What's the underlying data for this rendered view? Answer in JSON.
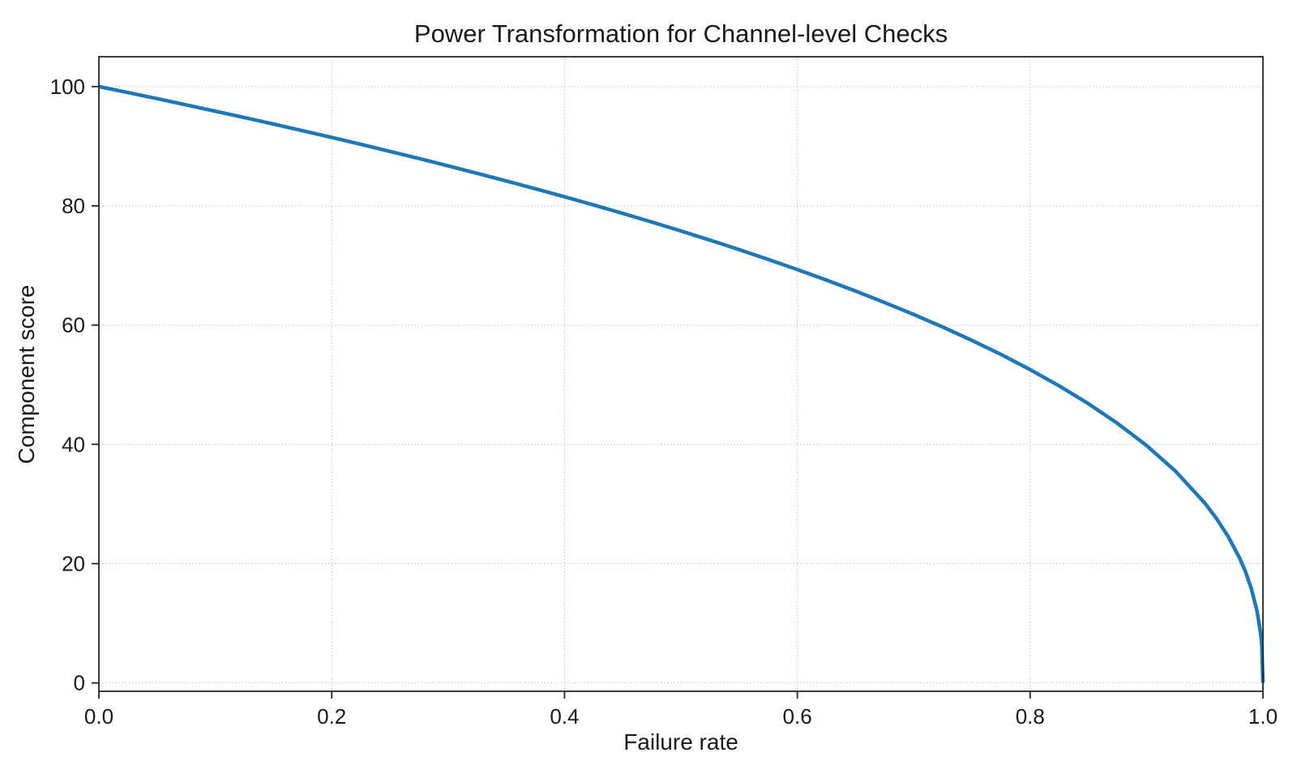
{
  "figure": {
    "background": "#ffffff"
  },
  "chart_data": {
    "type": "line",
    "title": "Power Transformation for Channel-level Checks",
    "xlabel": "Failure rate",
    "ylabel": "Component score",
    "xlim": [
      0.0,
      1.0
    ],
    "ylim": [
      -1.4,
      105.0
    ],
    "xticks": [
      0.0,
      0.2,
      0.4,
      0.6,
      0.8,
      1.0
    ],
    "xtick_labels": [
      "0.0",
      "0.2",
      "0.4",
      "0.6",
      "0.8",
      "1.0"
    ],
    "yticks": [
      0,
      20,
      40,
      60,
      80,
      100
    ],
    "ytick_labels": [
      "0",
      "20",
      "40",
      "60",
      "80",
      "100"
    ],
    "grid": true,
    "grid_style": "dotted",
    "legend": "none",
    "colors": {
      "line": "#1f77b4",
      "grid": "#c9c9c9",
      "spine": "#262626",
      "text": "#1a1a1a"
    },
    "series": [
      {
        "name": "component-score-curve",
        "points": [
          [
            0.0,
            100.0
          ],
          [
            0.025,
            98.99
          ],
          [
            0.05,
            97.97
          ],
          [
            0.075,
            96.93
          ],
          [
            0.1,
            95.87
          ],
          [
            0.125,
            94.8
          ],
          [
            0.15,
            93.71
          ],
          [
            0.175,
            92.59
          ],
          [
            0.2,
            91.46
          ],
          [
            0.225,
            90.31
          ],
          [
            0.25,
            89.13
          ],
          [
            0.275,
            87.93
          ],
          [
            0.3,
            86.7
          ],
          [
            0.325,
            85.45
          ],
          [
            0.35,
            84.17
          ],
          [
            0.375,
            82.86
          ],
          [
            0.4,
            81.52
          ],
          [
            0.425,
            80.14
          ],
          [
            0.45,
            78.73
          ],
          [
            0.475,
            77.28
          ],
          [
            0.5,
            75.79
          ],
          [
            0.525,
            74.25
          ],
          [
            0.55,
            72.66
          ],
          [
            0.575,
            71.02
          ],
          [
            0.6,
            69.31
          ],
          [
            0.625,
            67.55
          ],
          [
            0.65,
            65.71
          ],
          [
            0.675,
            63.79
          ],
          [
            0.7,
            61.78
          ],
          [
            0.725,
            59.67
          ],
          [
            0.75,
            57.43
          ],
          [
            0.775,
            55.07
          ],
          [
            0.8,
            52.53
          ],
          [
            0.825,
            49.8
          ],
          [
            0.85,
            46.82
          ],
          [
            0.875,
            43.53
          ],
          [
            0.9,
            39.81
          ],
          [
            0.925,
            35.48
          ],
          [
            0.95,
            30.17
          ],
          [
            0.96,
            27.59
          ],
          [
            0.97,
            24.6
          ],
          [
            0.98,
            20.91
          ],
          [
            0.985,
            18.64
          ],
          [
            0.99,
            15.85
          ],
          [
            0.995,
            12.01
          ],
          [
            0.998,
            8.33
          ],
          [
            0.999,
            6.31
          ],
          [
            1.0,
            0.0
          ]
        ]
      }
    ]
  }
}
